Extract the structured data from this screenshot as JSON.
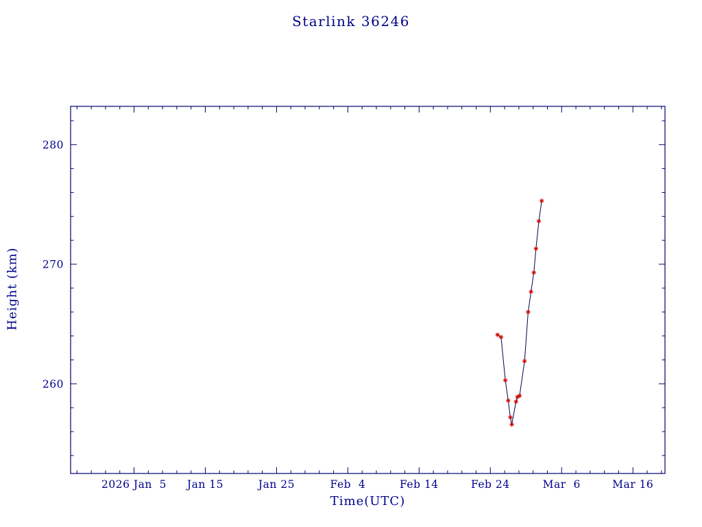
{
  "chart_data": {
    "type": "line",
    "title": "Starlink 36246",
    "xlabel": "Time(UTC)",
    "ylabel": "Height (km)",
    "x_ticks": [
      {
        "day_of_year": 5,
        "label": "2026 Jan  5"
      },
      {
        "day_of_year": 15,
        "label": "Jan 15"
      },
      {
        "day_of_year": 25,
        "label": "Jan 25"
      },
      {
        "day_of_year": 35,
        "label": "Feb  4"
      },
      {
        "day_of_year": 45,
        "label": "Feb 14"
      },
      {
        "day_of_year": 55,
        "label": "Feb 24"
      },
      {
        "day_of_year": 65,
        "label": "Mar  6"
      },
      {
        "day_of_year": 75,
        "label": "Mar 16"
      }
    ],
    "y_ticks": [
      260,
      270,
      280
    ],
    "x_range_day_of_year": [
      -3.9,
      79.5
    ],
    "ylim": [
      252.5,
      283.2
    ],
    "x_minor_step_days": 2,
    "y_minor_step_km": 2,
    "grid": false,
    "legend": false,
    "series": [
      {
        "name": "Starlink 36246 height",
        "marker": "red asterisk",
        "points": [
          {
            "day_of_year": 56.0,
            "date": "Feb 25",
            "height_km": 264.1
          },
          {
            "day_of_year": 56.5,
            "date": "Feb 25",
            "height_km": 263.9
          },
          {
            "day_of_year": 57.1,
            "date": "Feb 26",
            "height_km": 260.3
          },
          {
            "day_of_year": 57.5,
            "date": "Feb 26",
            "height_km": 258.6
          },
          {
            "day_of_year": 57.8,
            "date": "Feb 26",
            "height_km": 257.2
          },
          {
            "day_of_year": 58.0,
            "date": "Feb 27",
            "height_km": 256.6
          },
          {
            "day_of_year": 58.6,
            "date": "Feb 27",
            "height_km": 258.5
          },
          {
            "day_of_year": 58.8,
            "date": "Feb 27",
            "height_km": 258.9
          },
          {
            "day_of_year": 59.1,
            "date": "Feb 28",
            "height_km": 259.0
          },
          {
            "day_of_year": 59.8,
            "date": "Feb 28",
            "height_km": 261.9
          },
          {
            "day_of_year": 60.3,
            "date": "Mar 1",
            "height_km": 266.0
          },
          {
            "day_of_year": 60.7,
            "date": "Mar 1",
            "height_km": 267.7
          },
          {
            "day_of_year": 61.1,
            "date": "Mar 2",
            "height_km": 269.3
          },
          {
            "day_of_year": 61.4,
            "date": "Mar 2",
            "height_km": 271.3
          },
          {
            "day_of_year": 61.8,
            "date": "Mar 2",
            "height_km": 273.6
          },
          {
            "day_of_year": 62.2,
            "date": "Mar 3",
            "height_km": 275.3
          }
        ]
      }
    ],
    "colors": {
      "text": "#00008b",
      "frame": "#00006b",
      "line": "#00004b",
      "marker": "#d10000",
      "background": "#ffffff"
    }
  }
}
